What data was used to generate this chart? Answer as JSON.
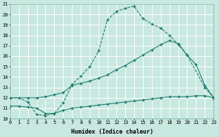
{
  "xlabel": "Humidex (Indice chaleur)",
  "xlim": [
    0,
    23
  ],
  "ylim": [
    10,
    21
  ],
  "xticks": [
    0,
    1,
    2,
    3,
    4,
    5,
    6,
    7,
    8,
    9,
    10,
    11,
    12,
    13,
    14,
    15,
    16,
    17,
    18,
    19,
    20,
    21,
    22,
    23
  ],
  "yticks": [
    10,
    11,
    12,
    13,
    14,
    15,
    16,
    17,
    18,
    19,
    20,
    21
  ],
  "bg_color": "#c8e8e0",
  "grid_color": "#ffffff",
  "line_color": "#1a7a6e",
  "curve1_x": [
    0,
    1,
    2,
    3,
    4,
    5,
    6,
    7,
    8,
    9,
    10,
    11,
    12,
    13,
    14,
    15,
    16,
    17,
    18,
    19,
    20,
    22,
    23
  ],
  "curve1_y": [
    12,
    12,
    11.6,
    10.4,
    10.3,
    10.5,
    11.5,
    13.3,
    14.1,
    15.0,
    16.5,
    19.5,
    20.3,
    20.6,
    20.8,
    19.6,
    19.1,
    18.7,
    18.0,
    17.1,
    16.1,
    13.0,
    12.0
  ],
  "curve2_x": [
    0,
    2,
    3,
    4,
    5,
    6,
    7,
    8,
    9,
    10,
    11,
    12,
    13,
    14,
    15,
    16,
    17,
    18,
    19,
    20,
    21,
    22,
    23
  ],
  "curve2_y": [
    12,
    12,
    12,
    12.1,
    12.3,
    12.5,
    13.2,
    13.4,
    13.6,
    13.9,
    14.2,
    14.7,
    15.1,
    15.6,
    16.1,
    16.6,
    17.1,
    17.5,
    17.2,
    16.1,
    15.2,
    13.2,
    12.0
  ],
  "curve3_x": [
    0,
    1,
    2,
    3,
    4,
    5,
    6,
    7,
    8,
    9,
    10,
    11,
    12,
    13,
    14,
    15,
    16,
    17,
    18,
    19,
    20,
    21,
    22,
    23
  ],
  "curve3_y": [
    11.2,
    11.2,
    11.1,
    11.0,
    10.5,
    10.5,
    10.8,
    11.0,
    11.1,
    11.2,
    11.3,
    11.4,
    11.5,
    11.6,
    11.7,
    11.8,
    11.9,
    12.0,
    12.1,
    12.1,
    12.1,
    12.2,
    12.2,
    12.0
  ]
}
